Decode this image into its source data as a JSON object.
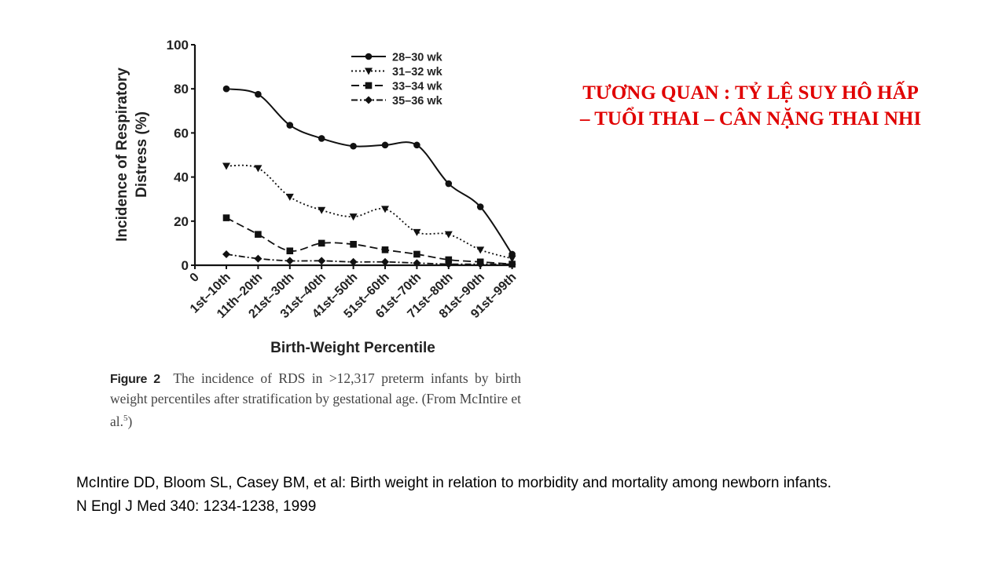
{
  "slide_title": {
    "line1": "TƯƠNG QUAN : TỶ LỆ SUY HÔ HẤP",
    "line2": "– TUỔI THAI – CÂN NẶNG THAI NHI"
  },
  "caption": {
    "label": "Figure 2",
    "text": "The incidence of RDS in >12,317 preterm infants by birth weight percentiles after stratification by gestational age. (From McIntire et al.",
    "superscript": "5",
    "close": ")"
  },
  "reference": {
    "line1": "McIntire DD, Bloom SL, Casey BM, et al: Birth weight in relation to morbidity and mortality among newborn infants.",
    "line2": "N Engl J Med 340: 1234-1238, 1999"
  },
  "chart_data": {
    "type": "line",
    "title": "",
    "xlabel": "Birth-Weight Percentile",
    "ylabel_lines": [
      "Incidence of Respiratory",
      "Distress (%)"
    ],
    "x_origin_label": "0",
    "categories": [
      "1st–10th",
      "11th–20th",
      "21st–30th",
      "31st–40th",
      "41st–50th",
      "51st–60th",
      "61st–70th",
      "71st–80th",
      "81st–90th",
      "91st–99th"
    ],
    "ylim": [
      0,
      100
    ],
    "yticks": [
      0,
      20,
      40,
      60,
      80,
      100
    ],
    "grid": false,
    "legend_position": "top-right",
    "series": [
      {
        "name": "28–30 wk",
        "marker": "circle",
        "style": "solid",
        "values": [
          80,
          77.5,
          63.5,
          57.5,
          54,
          54.5,
          54.5,
          37,
          26.5,
          5
        ]
      },
      {
        "name": "31–32 wk",
        "marker": "triangle-down",
        "style": "dotted",
        "values": [
          45,
          44,
          31,
          25,
          22,
          25.5,
          15,
          14,
          7,
          3
        ]
      },
      {
        "name": "33–34 wk",
        "marker": "square",
        "style": "dashed",
        "values": [
          21.5,
          14,
          6.5,
          10,
          9.5,
          7,
          5,
          2.5,
          1.5,
          0.5
        ]
      },
      {
        "name": "35–36 wk",
        "marker": "diamond",
        "style": "dash-dot",
        "values": [
          5,
          3,
          2,
          2,
          1.5,
          1.5,
          1,
          0.5,
          0.5,
          0.5
        ]
      }
    ]
  }
}
